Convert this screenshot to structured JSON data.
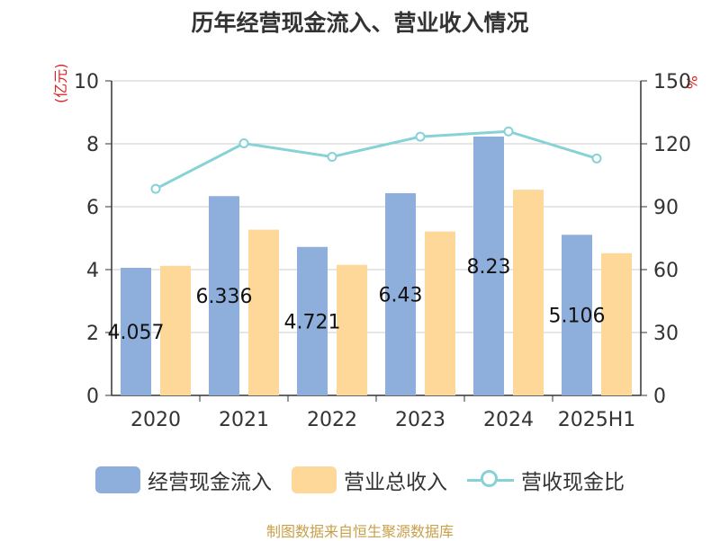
{
  "title": "历年经营现金流入、营业收入情况",
  "source": "制图数据来自恒生聚源数据库",
  "colors": {
    "cash_inflow": "#8eaedb",
    "revenue": "#fed898",
    "ratio": "#86d2d6",
    "axis_unit": "#e02020",
    "source": "#c8a04a"
  },
  "chart_data": {
    "type": "bar",
    "title": "历年经营现金流入、营业收入情况",
    "categories": [
      "2020",
      "2021",
      "2022",
      "2023",
      "2024",
      "2025H1"
    ],
    "left_axis": {
      "unit": "(亿元)",
      "range": [
        0,
        10
      ],
      "ticks": [
        "0",
        "2",
        "4",
        "6",
        "8",
        "10"
      ]
    },
    "right_axis": {
      "unit": "%",
      "range": [
        0,
        150
      ],
      "ticks": [
        "0",
        "30",
        "60",
        "90",
        "120",
        "150"
      ]
    },
    "series": [
      {
        "name": "经营现金流入",
        "type": "bar",
        "axis": "left",
        "values": [
          4.057,
          6.336,
          4.721,
          6.43,
          8.23,
          5.106
        ],
        "labels": [
          "4.057",
          "6.336",
          "4.721",
          "6.43",
          "8.23",
          "5.106"
        ]
      },
      {
        "name": "营业总收入",
        "type": "bar",
        "axis": "left",
        "values": [
          4.12,
          5.27,
          4.15,
          5.21,
          6.54,
          4.52
        ]
      },
      {
        "name": "营收现金比",
        "type": "line",
        "axis": "right",
        "values": [
          98.5,
          120.2,
          113.8,
          123.4,
          125.9,
          113.0
        ]
      }
    ],
    "grid": true,
    "legend": "bottom"
  }
}
